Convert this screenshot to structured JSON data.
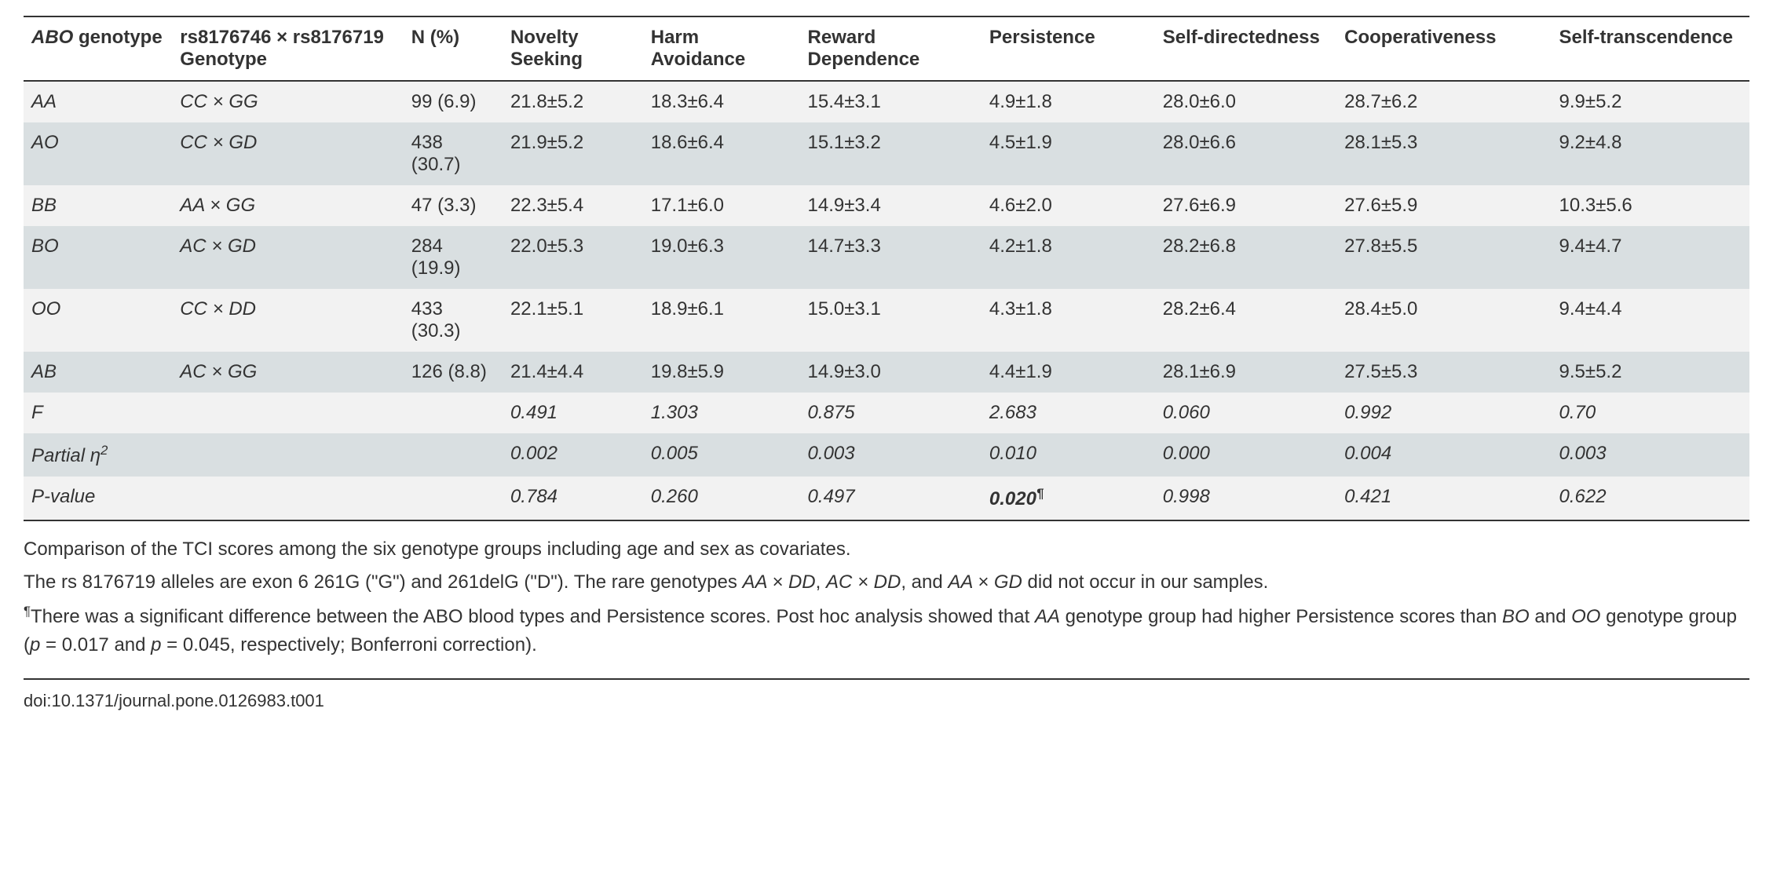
{
  "table": {
    "columns": [
      {
        "label": "ABO genotype",
        "italic_prefix": "ABO",
        "plain_suffix": " genotype"
      },
      {
        "label": "rs8176746 × rs8176719 Genotype"
      },
      {
        "label": "N (%)"
      },
      {
        "label": "Novelty Seeking"
      },
      {
        "label": "Harm Avoidance"
      },
      {
        "label": "Reward Dependence"
      },
      {
        "label": "Persistence"
      },
      {
        "label": "Self-directedness"
      },
      {
        "label": "Cooperativeness"
      },
      {
        "label": "Self-transcendence"
      }
    ],
    "data_rows": [
      {
        "abo": "AA",
        "geno": "CC × GG",
        "n": "99 (6.9)",
        "ns": "21.8±5.2",
        "ha": "18.3±6.4",
        "rd": "15.4±3.1",
        "p": "4.9±1.8",
        "sd": "28.0±6.0",
        "co": "28.7±6.2",
        "st": "9.9±5.2"
      },
      {
        "abo": "AO",
        "geno": "CC × GD",
        "n": "438 (30.7)",
        "ns": "21.9±5.2",
        "ha": "18.6±6.4",
        "rd": "15.1±3.2",
        "p": "4.5±1.9",
        "sd": "28.0±6.6",
        "co": "28.1±5.3",
        "st": "9.2±4.8"
      },
      {
        "abo": "BB",
        "geno": "AA × GG",
        "n": "47 (3.3)",
        "ns": "22.3±5.4",
        "ha": "17.1±6.0",
        "rd": "14.9±3.4",
        "p": "4.6±2.0",
        "sd": "27.6±6.9",
        "co": "27.6±5.9",
        "st": "10.3±5.6"
      },
      {
        "abo": "BO",
        "geno": "AC × GD",
        "n": "284 (19.9)",
        "ns": "22.0±5.3",
        "ha": "19.0±6.3",
        "rd": "14.7±3.3",
        "p": "4.2±1.8",
        "sd": "28.2±6.8",
        "co": "27.8±5.5",
        "st": "9.4±4.7"
      },
      {
        "abo": "OO",
        "geno": "CC × DD",
        "n": "433 (30.3)",
        "ns": "22.1±5.1",
        "ha": "18.9±6.1",
        "rd": "15.0±3.1",
        "p": "4.3±1.8",
        "sd": "28.2±6.4",
        "co": "28.4±5.0",
        "st": "9.4±4.4"
      },
      {
        "abo": "AB",
        "geno": "AC × GG",
        "n": "126 (8.8)",
        "ns": "21.4±4.4",
        "ha": "19.8±5.9",
        "rd": "14.9±3.0",
        "p": "4.4±1.9",
        "sd": "28.1±6.9",
        "co": "27.5±5.3",
        "st": "9.5±5.2"
      }
    ],
    "stat_rows": [
      {
        "label": "F",
        "vals": [
          "0.491",
          "1.303",
          "0.875",
          "2.683",
          "0.060",
          "0.992",
          "0.70"
        ]
      },
      {
        "label": "Partial η",
        "sup": "2",
        "vals": [
          "0.002",
          "0.005",
          "0.003",
          "0.010",
          "0.000",
          "0.004",
          "0.003"
        ]
      },
      {
        "label": "P-value",
        "vals": [
          "0.784",
          "0.260",
          "0.497",
          {
            "text": "0.020",
            "bold": true,
            "sup": "¶"
          },
          "0.998",
          "0.421",
          "0.622"
        ]
      }
    ]
  },
  "footnotes": {
    "line1": "Comparison of the TCI scores among the six genotype groups including age and sex as covariates.",
    "line2_pre": "The rs 8176719 alleles are exon 6 261G (\"G\") and 261delG (\"D\"). The rare genotypes ",
    "line2_g1": "AA × DD",
    "line2_mid1": ", ",
    "line2_g2": "AC × DD",
    "line2_mid2": ", and ",
    "line2_g3": "AA × GD",
    "line2_post": " did not occur in our samples.",
    "line3_sup": "¶",
    "line3_pre": "There was a significant difference between the ABO blood types and Persistence scores. Post hoc analysis showed that ",
    "line3_g1": "AA",
    "line3_mid1": " genotype group had higher Persistence scores than ",
    "line3_g2": "BO",
    "line3_mid2": " and ",
    "line3_g3": "OO",
    "line3_mid3": " genotype group (",
    "line3_p1": "p",
    "line3_p1val": " = 0.017 and ",
    "line3_p2": "p",
    "line3_p2val": " = 0.045, respectively; Bonferroni correction)."
  },
  "doi": "doi:10.1371/journal.pone.0126983.t001"
}
